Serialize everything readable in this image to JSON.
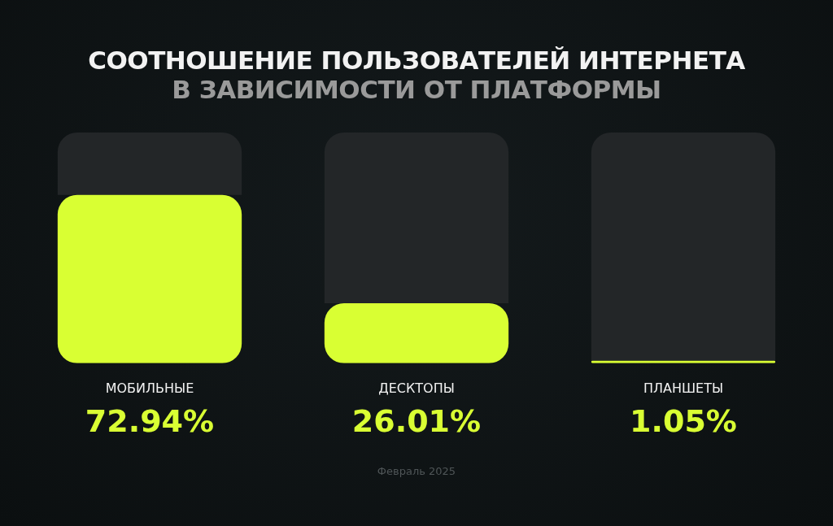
{
  "chart_data": {
    "type": "bar",
    "title": "СООТНОШЕНИЕ ПОЛЬЗОВАТЕЛЕЙ ИНТЕРНЕТА",
    "subtitle": "В ЗАВИСИМОСТИ ОТ ПЛАТФОРМЫ",
    "categories": [
      "МОБИЛЬНЫЕ",
      "ДЕСКТОПЫ",
      "ПЛАНШЕТЫ"
    ],
    "series": [
      {
        "color": "#d9ff33",
        "values": [
          72.94,
          26.01,
          1.05
        ],
        "value_labels": [
          "72.94%",
          "26.01%",
          "1.05%"
        ]
      },
      {
        "color": "#232628",
        "values": [
          27.06,
          73.99,
          98.95
        ]
      }
    ],
    "stacked": true,
    "grid": false,
    "ylim": [
      0,
      100
    ],
    "legend": false,
    "annotations": [
      "Февраль 2025"
    ]
  }
}
